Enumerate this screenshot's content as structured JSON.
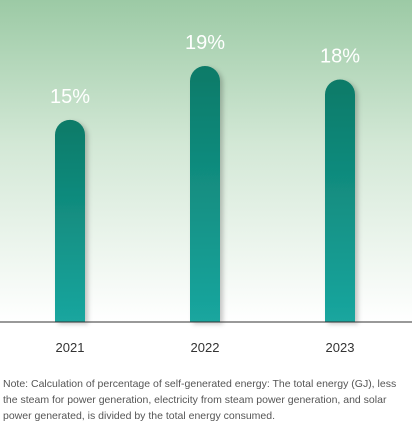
{
  "chart_data": {
    "type": "bar",
    "categories": [
      "2021",
      "2022",
      "2023"
    ],
    "values": [
      15,
      19,
      18
    ],
    "value_labels": [
      "15%",
      "19%",
      "18%"
    ],
    "unit": "%",
    "ylim": [
      0,
      19
    ],
    "grid": false,
    "colors": {
      "bar_top": "#0b7a68",
      "bar_bottom": "#1aa69f",
      "background_top": "#9ccaa5",
      "background_bottom": "#ffffff",
      "value_label": "#ffffff",
      "axis": "#333333"
    }
  },
  "note": "Note: Calculation of percentage of self-generated energy: The total energy (GJ), less the steam for power generation, electricity from steam power generation, and solar power generated, is divided by the total energy consumed."
}
